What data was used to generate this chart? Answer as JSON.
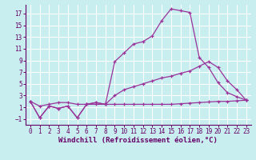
{
  "title": "",
  "xlabel": "Windchill (Refroidissement éolien,°C)",
  "background_color": "#c8eef0",
  "grid_color": "#ffffff",
  "line_color": "#993399",
  "xlim": [
    -0.5,
    23.5
  ],
  "ylim": [
    -2.0,
    18.5
  ],
  "xticks": [
    0,
    1,
    2,
    3,
    4,
    5,
    6,
    7,
    8,
    9,
    10,
    11,
    12,
    13,
    14,
    15,
    16,
    17,
    18,
    19,
    20,
    21,
    22,
    23
  ],
  "yticks": [
    -1,
    1,
    3,
    5,
    7,
    9,
    11,
    13,
    15,
    17
  ],
  "line1_x": [
    0,
    1,
    2,
    3,
    4,
    5,
    6,
    7,
    8,
    9,
    10,
    11,
    12,
    13,
    14,
    15,
    16,
    17,
    18,
    19,
    20,
    21,
    22,
    23
  ],
  "line1_y": [
    2.0,
    -0.8,
    1.2,
    0.8,
    1.2,
    -0.8,
    1.5,
    1.8,
    1.5,
    8.8,
    10.3,
    11.8,
    12.2,
    13.2,
    15.8,
    17.8,
    17.5,
    17.2,
    9.5,
    7.8,
    5.2,
    3.5,
    2.8,
    2.2
  ],
  "line2_x": [
    0,
    1,
    2,
    3,
    4,
    5,
    6,
    7,
    8,
    9,
    10,
    11,
    12,
    13,
    14,
    15,
    16,
    17,
    18,
    19,
    20,
    21,
    22,
    23
  ],
  "line2_y": [
    2.0,
    -0.8,
    1.2,
    0.8,
    1.2,
    -0.8,
    1.5,
    1.8,
    1.5,
    3.0,
    4.0,
    4.5,
    5.0,
    5.5,
    6.0,
    6.3,
    6.8,
    7.2,
    8.0,
    8.8,
    7.8,
    5.5,
    4.0,
    2.2
  ],
  "line3_x": [
    0,
    1,
    2,
    3,
    4,
    5,
    6,
    7,
    8,
    9,
    10,
    11,
    12,
    13,
    14,
    15,
    16,
    17,
    18,
    19,
    20,
    21,
    22,
    23
  ],
  "line3_y": [
    2.0,
    1.2,
    1.5,
    1.8,
    1.8,
    1.5,
    1.5,
    1.5,
    1.5,
    1.5,
    1.5,
    1.5,
    1.5,
    1.5,
    1.5,
    1.5,
    1.6,
    1.7,
    1.8,
    1.9,
    2.0,
    2.0,
    2.1,
    2.2
  ],
  "xlabel_fontsize": 6.5,
  "tick_fontsize": 5.5
}
